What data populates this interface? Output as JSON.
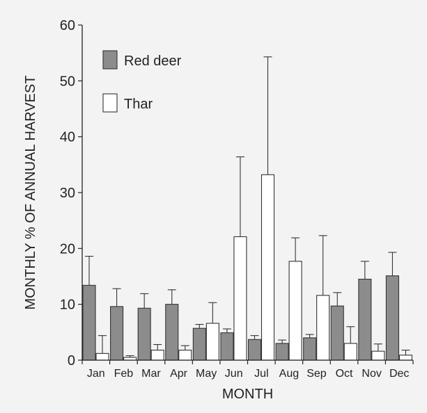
{
  "chart_data": {
    "type": "bar",
    "xlabel": "MONTH",
    "ylabel": "MONTHLY % OF ANNUAL HARVEST",
    "ylim": [
      0,
      60
    ],
    "yticks": [
      0,
      10,
      20,
      30,
      40,
      50,
      60
    ],
    "categories": [
      "Jan",
      "Feb",
      "Mar",
      "Apr",
      "May",
      "Jun",
      "Jul",
      "Aug",
      "Sep",
      "Oct",
      "Nov",
      "Dec"
    ],
    "legend_position": "top-left",
    "grid": false,
    "series": [
      {
        "name": "Red deer",
        "color": "#8c8c8c",
        "values": [
          13.4,
          9.6,
          9.3,
          10.0,
          5.7,
          4.9,
          3.7,
          3.0,
          4.0,
          9.7,
          14.5,
          15.1
        ],
        "error_upper": [
          18.6,
          12.8,
          11.9,
          12.6,
          6.4,
          5.6,
          4.4,
          3.6,
          4.6,
          12.1,
          17.7,
          19.3
        ]
      },
      {
        "name": "Thar",
        "color": "#ffffff",
        "values": [
          1.2,
          0.5,
          1.8,
          1.8,
          6.6,
          22.1,
          33.2,
          17.7,
          11.6,
          3.0,
          1.6,
          0.9
        ],
        "error_upper": [
          4.4,
          0.8,
          2.8,
          2.6,
          10.3,
          36.4,
          54.3,
          21.9,
          22.3,
          6.0,
          2.9,
          1.8
        ]
      }
    ]
  }
}
